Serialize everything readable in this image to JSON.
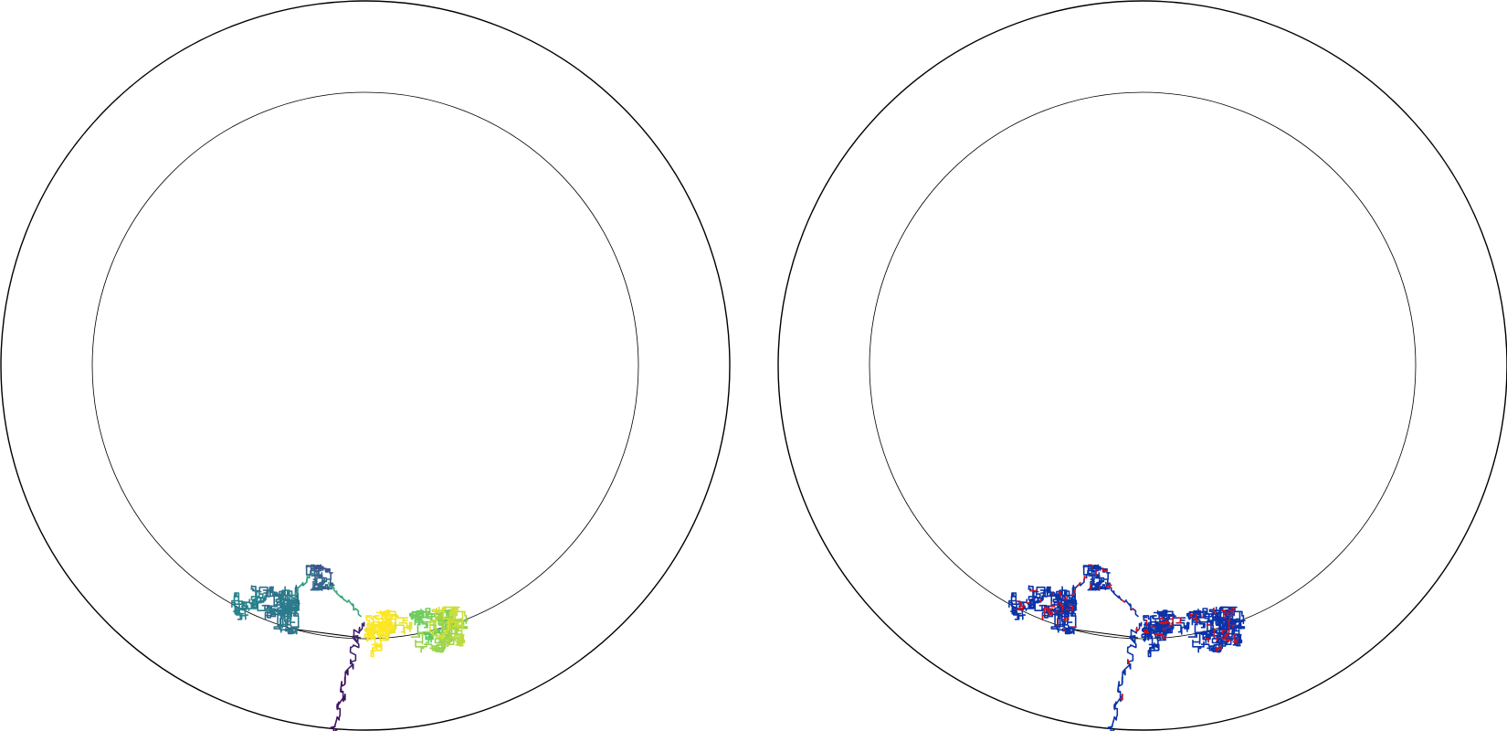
{
  "figure": {
    "panels": [
      {
        "id": "left",
        "color_mode": "viridis-gradient",
        "ring_colors": "#000000"
      },
      {
        "id": "right",
        "color_mode": "single-color",
        "trace_color": "#0a33a8",
        "marker_color": "#e01010"
      }
    ],
    "viridis_stops": [
      "#440154",
      "#3b528b",
      "#21918c",
      "#5ec962",
      "#fde725"
    ],
    "segment_color_order": [
      0.05,
      0.35,
      0.55,
      0.25,
      0.6,
      0.75,
      0.95,
      0.85
    ]
  }
}
